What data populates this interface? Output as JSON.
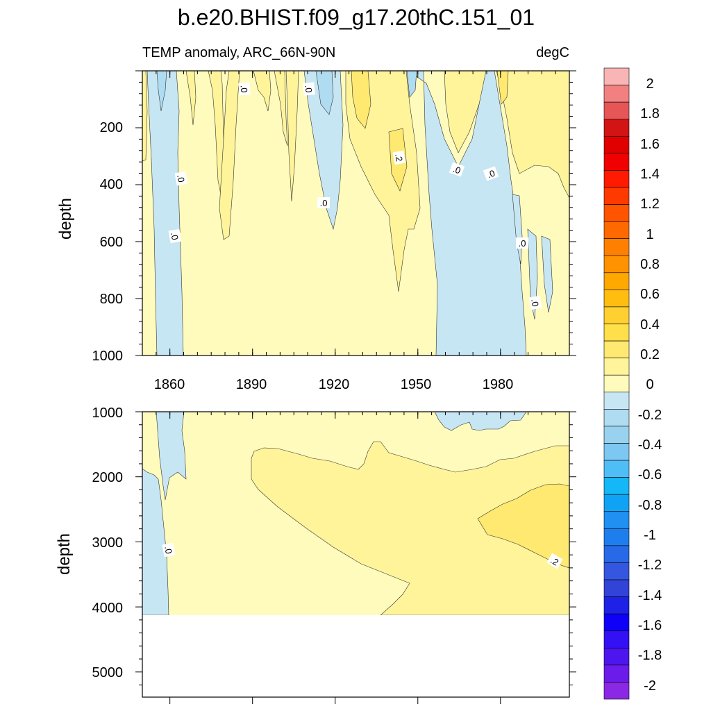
{
  "chart_data": [
    {
      "type": "contour",
      "title": "b.e20.BHIST.f09_g17.20thC.151_01",
      "subtitle_left": "TEMP anomaly, ARC_66N-90N",
      "subtitle_right": "degC",
      "ylabel": "depth",
      "xlabel": "",
      "xlim": [
        1850,
        2005
      ],
      "ylim": [
        1000,
        0
      ],
      "xticks": [
        "1860",
        "1890",
        "1920",
        "1950",
        "1980"
      ],
      "yticks": [
        "200",
        "400",
        "600",
        "800",
        "1000"
      ],
      "contour_labels": [
        ".0",
        ".0",
        ".0",
        ".0",
        ".0",
        ".0",
        ".2",
        ".0",
        ".0",
        ".0",
        ".0"
      ]
    },
    {
      "type": "contour",
      "ylabel": "depth",
      "xlim": [
        1850,
        2005
      ],
      "ylim": [
        5400,
        1000
      ],
      "yticks": [
        "1000",
        "2000",
        "3000",
        "4000",
        "5000"
      ],
      "contour_labels": [
        ".0",
        ".2"
      ]
    }
  ],
  "colorbar": {
    "labels": [
      "2",
      "1.8",
      "1.6",
      "1.4",
      "1.2",
      "1",
      "0.8",
      "0.6",
      "0.4",
      "0.2",
      "0",
      "-0.2",
      "-0.4",
      "-0.6",
      "-0.8",
      "-1",
      "-1.2",
      "-1.4",
      "-1.6",
      "-1.8",
      "-2"
    ],
    "colors": [
      "#f9b5b5",
      "#f28080",
      "#e65656",
      "#d21414",
      "#e00000",
      "#f00000",
      "#ff1a00",
      "#ff3a00",
      "#ff5500",
      "#ff6a00",
      "#ff8000",
      "#ff9200",
      "#ffa800",
      "#ffbd10",
      "#ffd030",
      "#ffdf4a",
      "#ffe970",
      "#fff49a",
      "#fffbbd",
      "#c7e6f3",
      "#afdcf0",
      "#99d2ee",
      "#7cc8f2",
      "#4fbef7",
      "#14b8f7",
      "#10a3f5",
      "#2090f2",
      "#1e7eee",
      "#2869e8",
      "#3456e0",
      "#3243d8",
      "#1d22e6",
      "#0f00f8",
      "#3410f4",
      "#4d16ee",
      "#6b1cea",
      "#8b28e6"
    ]
  }
}
